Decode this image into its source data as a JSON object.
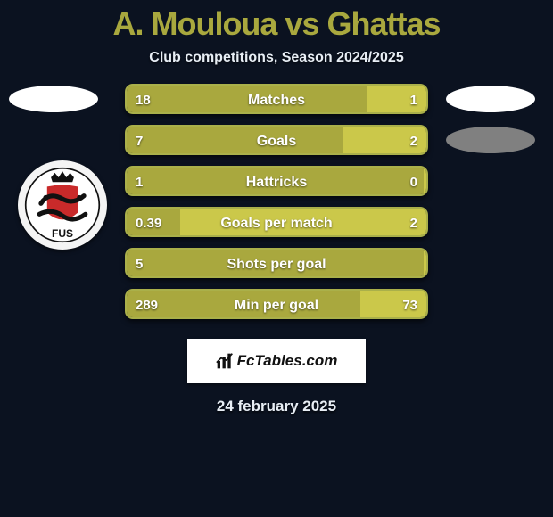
{
  "colors": {
    "background": "#0b1220",
    "title": "#a9a83e",
    "bar_border": "#aab04a",
    "bar_left_fill": "#a9a83e",
    "bar_right_fill": "#cbc84a",
    "text": "#ffffff",
    "subtitle": "#e8eef5",
    "ellipse_left": "#ffffff",
    "ellipse_right_top": "#ffffff",
    "ellipse_right_bottom": "#808080"
  },
  "header": {
    "title": "A. Mouloua vs Ghattas",
    "subtitle": "Club competitions, Season 2024/2025"
  },
  "rows": [
    {
      "label": "Matches",
      "left_val": "18",
      "right_val": "1",
      "left_pct": 80,
      "show_left_ellipse": true,
      "show_right_ellipse": true,
      "right_ellipse_color": "#ffffff"
    },
    {
      "label": "Goals",
      "left_val": "7",
      "right_val": "2",
      "left_pct": 72,
      "show_left_ellipse": false,
      "show_right_ellipse": true,
      "right_ellipse_color": "#808080"
    },
    {
      "label": "Hattricks",
      "left_val": "1",
      "right_val": "0",
      "left_pct": 99,
      "show_left_ellipse": false,
      "show_right_ellipse": false
    },
    {
      "label": "Goals per match",
      "left_val": "0.39",
      "right_val": "2",
      "left_pct": 18,
      "show_left_ellipse": false,
      "show_right_ellipse": false
    },
    {
      "label": "Shots per goal",
      "left_val": "5",
      "right_val": "",
      "left_pct": 99,
      "show_left_ellipse": false,
      "show_right_ellipse": false
    },
    {
      "label": "Min per goal",
      "left_val": "289",
      "right_val": "73",
      "left_pct": 78,
      "show_left_ellipse": false,
      "show_right_ellipse": false
    }
  ],
  "branding": {
    "text": "FcTables.com"
  },
  "footer": {
    "date": "24 february 2025"
  }
}
